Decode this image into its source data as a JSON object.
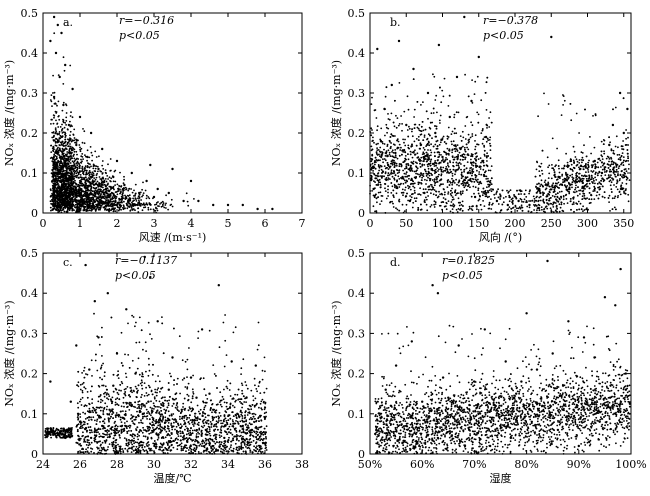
{
  "chart_data": [
    {
      "type": "scatter",
      "panel_label": "a.",
      "xlabel": "风速 /(m·s⁻¹)",
      "ylabel": "NOₓ 浓度 /(mg·m⁻³)",
      "xlim": [
        0,
        7
      ],
      "ylim": [
        0,
        0.5
      ],
      "xticks": [
        0,
        1,
        2,
        3,
        4,
        5,
        6,
        7
      ],
      "xtick_labels": [
        "0",
        "1",
        "2",
        "3",
        "4",
        "5",
        "6",
        "7"
      ],
      "yticks": [
        0,
        0.1,
        0.2,
        0.3,
        0.4,
        0.5
      ],
      "ytick_labels": [
        "0",
        "0.1",
        "0.2",
        "0.3",
        "0.4",
        "0.5"
      ],
      "annotation_r": "r=−0.316",
      "annotation_p": "p<0.05",
      "grid": false,
      "legend": "none",
      "point_color": "#000000",
      "points": [
        [
          0.3,
          0.49
        ],
        [
          0.4,
          0.47
        ],
        [
          0.5,
          0.45
        ],
        [
          0.2,
          0.43
        ],
        [
          0.35,
          0.4
        ],
        [
          0.6,
          0.37
        ],
        [
          0.45,
          0.34
        ],
        [
          0.8,
          0.31
        ],
        [
          0.3,
          0.29
        ],
        [
          0.55,
          0.27
        ],
        [
          1.0,
          0.24
        ],
        [
          0.7,
          0.22
        ],
        [
          1.3,
          0.2
        ],
        [
          0.5,
          0.19
        ],
        [
          0.9,
          0.17
        ],
        [
          1.6,
          0.16
        ],
        [
          0.4,
          0.15
        ],
        [
          1.2,
          0.14
        ],
        [
          2.0,
          0.13
        ],
        [
          0.6,
          0.12
        ],
        [
          1.5,
          0.11
        ],
        [
          2.4,
          0.1
        ],
        [
          0.8,
          0.09
        ],
        [
          1.9,
          0.09
        ],
        [
          2.8,
          0.08
        ],
        [
          1.1,
          0.07
        ],
        [
          2.2,
          0.07
        ],
        [
          3.1,
          0.06
        ],
        [
          0.5,
          0.06
        ],
        [
          1.4,
          0.05
        ],
        [
          2.6,
          0.05
        ],
        [
          3.4,
          0.05
        ],
        [
          0.9,
          0.04
        ],
        [
          1.8,
          0.04
        ],
        [
          3.0,
          0.04
        ],
        [
          3.8,
          0.03
        ],
        [
          1.3,
          0.03
        ],
        [
          2.3,
          0.03
        ],
        [
          4.2,
          0.03
        ],
        [
          4.6,
          0.02
        ],
        [
          5.0,
          0.02
        ],
        [
          5.4,
          0.02
        ],
        [
          5.8,
          0.01
        ],
        [
          6.2,
          0.01
        ],
        [
          3.5,
          0.11
        ],
        [
          4.0,
          0.08
        ],
        [
          2.9,
          0.12
        ],
        [
          0.7,
          0.05
        ],
        [
          1.7,
          0.06
        ],
        [
          2.5,
          0.02
        ]
      ]
    },
    {
      "type": "scatter",
      "panel_label": "b.",
      "xlabel": "风向 /(°)",
      "ylabel": "NOₓ 浓度 /(mg·m⁻³)",
      "xlim": [
        0,
        360
      ],
      "ylim": [
        0,
        0.5
      ],
      "xticks": [
        0,
        50,
        100,
        150,
        200,
        250,
        300,
        350
      ],
      "xtick_labels": [
        "0",
        "50",
        "100",
        "150",
        "200",
        "250",
        "300",
        "350"
      ],
      "yticks": [
        0,
        0.1,
        0.2,
        0.3,
        0.4,
        0.5
      ],
      "ytick_labels": [
        "0",
        "0.1",
        "0.2",
        "0.3",
        "0.4",
        "0.5"
      ],
      "annotation_r": "r=−0.378",
      "annotation_p": "p<0.05",
      "grid": false,
      "legend": "none",
      "point_color": "#000000",
      "points": [
        [
          130,
          0.49
        ],
        [
          250,
          0.44
        ],
        [
          40,
          0.43
        ],
        [
          95,
          0.42
        ],
        [
          10,
          0.41
        ],
        [
          150,
          0.39
        ],
        [
          60,
          0.36
        ],
        [
          120,
          0.34
        ],
        [
          30,
          0.32
        ],
        [
          80,
          0.3
        ],
        [
          140,
          0.28
        ],
        [
          20,
          0.26
        ],
        [
          110,
          0.24
        ],
        [
          50,
          0.22
        ],
        [
          90,
          0.2
        ],
        [
          160,
          0.19
        ],
        [
          15,
          0.18
        ],
        [
          70,
          0.17
        ],
        [
          125,
          0.16
        ],
        [
          35,
          0.15
        ],
        [
          100,
          0.14
        ],
        [
          155,
          0.13
        ],
        [
          25,
          0.12
        ],
        [
          85,
          0.11
        ],
        [
          135,
          0.1
        ],
        [
          45,
          0.09
        ],
        [
          115,
          0.08
        ],
        [
          165,
          0.07
        ],
        [
          5,
          0.06
        ],
        [
          75,
          0.05
        ],
        [
          145,
          0.04
        ],
        [
          55,
          0.03
        ],
        [
          175,
          0.03
        ],
        [
          190,
          0.02
        ],
        [
          205,
          0.03
        ],
        [
          220,
          0.02
        ],
        [
          235,
          0.05
        ],
        [
          245,
          0.07
        ],
        [
          260,
          0.09
        ],
        [
          275,
          0.06
        ],
        [
          290,
          0.11
        ],
        [
          300,
          0.08
        ],
        [
          310,
          0.13
        ],
        [
          320,
          0.1
        ],
        [
          330,
          0.17
        ],
        [
          340,
          0.12
        ],
        [
          350,
          0.2
        ],
        [
          355,
          0.26
        ],
        [
          345,
          0.3
        ],
        [
          335,
          0.22
        ]
      ]
    },
    {
      "type": "scatter",
      "panel_label": "c.",
      "xlabel": "温度/℃",
      "ylabel": "NOₓ 浓度 /(mg·m⁻³)",
      "xlim": [
        24,
        38
      ],
      "ylim": [
        0,
        0.5
      ],
      "xticks": [
        24,
        26,
        28,
        30,
        32,
        34,
        36,
        38
      ],
      "xtick_labels": [
        "24",
        "26",
        "28",
        "30",
        "32",
        "34",
        "36",
        "38"
      ],
      "yticks": [
        0,
        0.1,
        0.2,
        0.3,
        0.4,
        0.5
      ],
      "ytick_labels": [
        "0",
        "0.1",
        "0.2",
        "0.3",
        "0.4",
        "0.5"
      ],
      "annotation_r": "r=−0.1137",
      "annotation_p": "p<0.05",
      "grid": false,
      "legend": "none",
      "point_color": "#000000",
      "points": [
        [
          26.3,
          0.47
        ],
        [
          29.5,
          0.49
        ],
        [
          29.8,
          0.44
        ],
        [
          33.5,
          0.42
        ],
        [
          27.5,
          0.4
        ],
        [
          26.8,
          0.38
        ],
        [
          28.5,
          0.36
        ],
        [
          30.2,
          0.33
        ],
        [
          32.6,
          0.31
        ],
        [
          27.0,
          0.29
        ],
        [
          25.8,
          0.27
        ],
        [
          28.0,
          0.25
        ],
        [
          31.0,
          0.24
        ],
        [
          34.2,
          0.23
        ],
        [
          35.5,
          0.22
        ],
        [
          26.5,
          0.21
        ],
        [
          29.0,
          0.2
        ],
        [
          32.0,
          0.19
        ],
        [
          24.4,
          0.18
        ],
        [
          27.8,
          0.17
        ],
        [
          30.8,
          0.16
        ],
        [
          33.0,
          0.15
        ],
        [
          35.0,
          0.14
        ],
        [
          25.5,
          0.13
        ],
        [
          28.8,
          0.12
        ],
        [
          31.5,
          0.11
        ],
        [
          34.5,
          0.1
        ],
        [
          36.0,
          0.09
        ],
        [
          26.0,
          0.08
        ],
        [
          27.2,
          0.07
        ],
        [
          30.0,
          0.06
        ],
        [
          32.8,
          0.06
        ],
        [
          24.2,
          0.05
        ],
        [
          24.8,
          0.05
        ],
        [
          25.2,
          0.04
        ],
        [
          26.6,
          0.04
        ],
        [
          29.3,
          0.03
        ],
        [
          31.8,
          0.03
        ],
        [
          33.8,
          0.04
        ],
        [
          35.8,
          0.05
        ],
        [
          28.3,
          0.09
        ],
        [
          29.7,
          0.13
        ],
        [
          31.2,
          0.08
        ],
        [
          33.2,
          0.11
        ],
        [
          34.8,
          0.07
        ],
        [
          27.6,
          0.11
        ],
        [
          25.9,
          0.1
        ],
        [
          30.5,
          0.12
        ],
        [
          32.3,
          0.14
        ],
        [
          35.3,
          0.06
        ]
      ]
    },
    {
      "type": "scatter",
      "panel_label": "d.",
      "xlabel": "湿度",
      "ylabel": "NOₓ 浓度 /(mg·m⁻³)",
      "xlim": [
        50,
        100
      ],
      "ylim": [
        0,
        0.5
      ],
      "xticks": [
        50,
        60,
        70,
        80,
        90,
        100
      ],
      "xtick_labels": [
        "50%",
        "60%",
        "70%",
        "80%",
        "90%",
        "100%"
      ],
      "yticks": [
        0,
        0.1,
        0.2,
        0.3,
        0.4,
        0.5
      ],
      "ytick_labels": [
        "0",
        "0.1",
        "0.2",
        "0.3",
        "0.4",
        "0.5"
      ],
      "annotation_r": "r=0.1825",
      "annotation_p": "p<0.05",
      "grid": false,
      "legend": "none",
      "point_color": "#000000",
      "points": [
        [
          84,
          0.48
        ],
        [
          98,
          0.46
        ],
        [
          62,
          0.42
        ],
        [
          63,
          0.4
        ],
        [
          95,
          0.39
        ],
        [
          97,
          0.37
        ],
        [
          80,
          0.35
        ],
        [
          88,
          0.33
        ],
        [
          72,
          0.31
        ],
        [
          91,
          0.29
        ],
        [
          58,
          0.28
        ],
        [
          67,
          0.27
        ],
        [
          85,
          0.25
        ],
        [
          93,
          0.24
        ],
        [
          76,
          0.23
        ],
        [
          55,
          0.22
        ],
        [
          82,
          0.21
        ],
        [
          99,
          0.2
        ],
        [
          64,
          0.19
        ],
        [
          70,
          0.18
        ],
        [
          87,
          0.17
        ],
        [
          53,
          0.16
        ],
        [
          78,
          0.15
        ],
        [
          96,
          0.14
        ],
        [
          60,
          0.13
        ],
        [
          74,
          0.12
        ],
        [
          89,
          0.11
        ],
        [
          52,
          0.1
        ],
        [
          66,
          0.09
        ],
        [
          81,
          0.08
        ],
        [
          94,
          0.08
        ],
        [
          57,
          0.07
        ],
        [
          69,
          0.06
        ],
        [
          86,
          0.06
        ],
        [
          51,
          0.05
        ],
        [
          63,
          0.04
        ],
        [
          77,
          0.04
        ],
        [
          92,
          0.03
        ],
        [
          59,
          0.03
        ],
        [
          73,
          0.02
        ],
        [
          90,
          0.02
        ],
        [
          65,
          0.14
        ],
        [
          79,
          0.18
        ],
        [
          83,
          0.12
        ],
        [
          97,
          0.1
        ],
        [
          54,
          0.12
        ],
        [
          68,
          0.11
        ],
        [
          75,
          0.07
        ],
        [
          99,
          0.16
        ],
        [
          61,
          0.08
        ]
      ]
    }
  ]
}
